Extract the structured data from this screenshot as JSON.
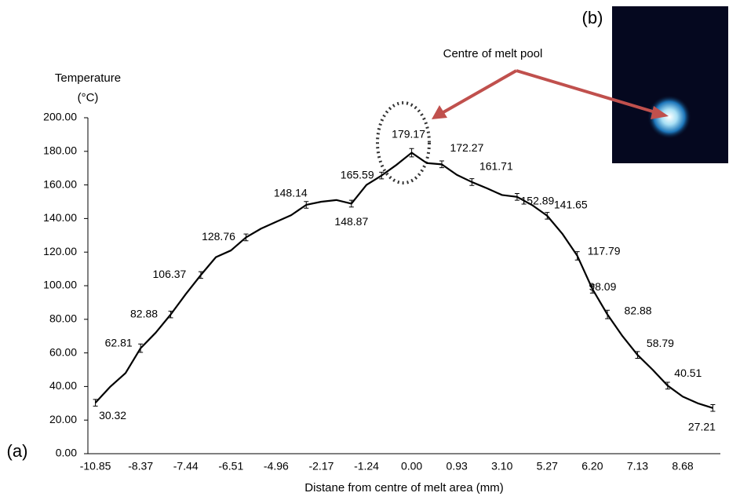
{
  "chart_data": {
    "type": "line",
    "ylabel": [
      "Temperature",
      "(°C)"
    ],
    "xlabel": "Distane from centre of melt area (mm)",
    "annotations": {
      "a": "(a)",
      "b": "(b)",
      "callout": "Centre of melt pool"
    },
    "categories": [
      "-10.85",
      null,
      null,
      "-8.37",
      null,
      null,
      "-7.44",
      null,
      null,
      "-6.51",
      null,
      null,
      "-4.96",
      null,
      null,
      "-2.17",
      null,
      null,
      "-1.24",
      null,
      null,
      "0.00",
      null,
      null,
      "0.93",
      null,
      null,
      "3.10",
      null,
      null,
      "5.27",
      null,
      null,
      "6.20",
      null,
      null,
      "7.13",
      null,
      null,
      "8.68",
      null,
      null
    ],
    "series": [
      {
        "color": "#000000",
        "values": [
          30.32,
          40,
          48,
          62.81,
          72,
          82.88,
          95,
          106.37,
          117,
          121,
          128.76,
          134,
          138,
          142,
          148.14,
          150,
          151,
          148.87,
          160,
          165.59,
          172,
          179.17,
          173,
          172.27,
          166,
          161.71,
          158,
          154,
          152.89,
          148,
          141.65,
          131,
          117.79,
          98.09,
          82.88,
          70,
          58.79,
          50,
          40.51,
          34,
          30,
          27.21
        ],
        "value_labels": [
          "30.32",
          null,
          null,
          "62.81",
          null,
          "82.88",
          null,
          "106.37",
          null,
          null,
          "128.76",
          null,
          null,
          null,
          "148.14",
          null,
          null,
          "148.87",
          null,
          "165.59",
          null,
          "179.17",
          null,
          "172.27",
          null,
          "161.71",
          null,
          null,
          "152.89",
          null,
          "141.65",
          null,
          "117.79",
          "98.09",
          "82.88",
          null,
          "58.79",
          null,
          "40.51",
          null,
          null,
          "27.21"
        ],
        "errors": [
          2,
          null,
          null,
          2.5,
          null,
          2,
          null,
          2,
          null,
          null,
          2,
          null,
          null,
          null,
          2,
          null,
          null,
          2,
          null,
          2,
          null,
          2.5,
          null,
          2,
          null,
          2,
          null,
          null,
          2,
          null,
          2,
          null,
          2.5,
          2.5,
          2.5,
          null,
          2,
          null,
          2,
          null,
          null,
          2
        ]
      }
    ],
    "ylim": [
      0,
      200
    ],
    "yticks": [
      {
        "value": 0,
        "label": "0.00"
      },
      {
        "value": 20,
        "label": "20.00"
      },
      {
        "value": 40,
        "label": "40.00"
      },
      {
        "value": 60,
        "label": "60.00"
      },
      {
        "value": 80,
        "label": "80.00"
      },
      {
        "value": 100,
        "label": "100.00"
      },
      {
        "value": 120,
        "label": "120.00"
      },
      {
        "value": 140,
        "label": "140.00"
      },
      {
        "value": 160,
        "label": "160.00"
      },
      {
        "value": 180,
        "label": "180.00"
      },
      {
        "value": 200,
        "label": "200.00"
      }
    ]
  }
}
